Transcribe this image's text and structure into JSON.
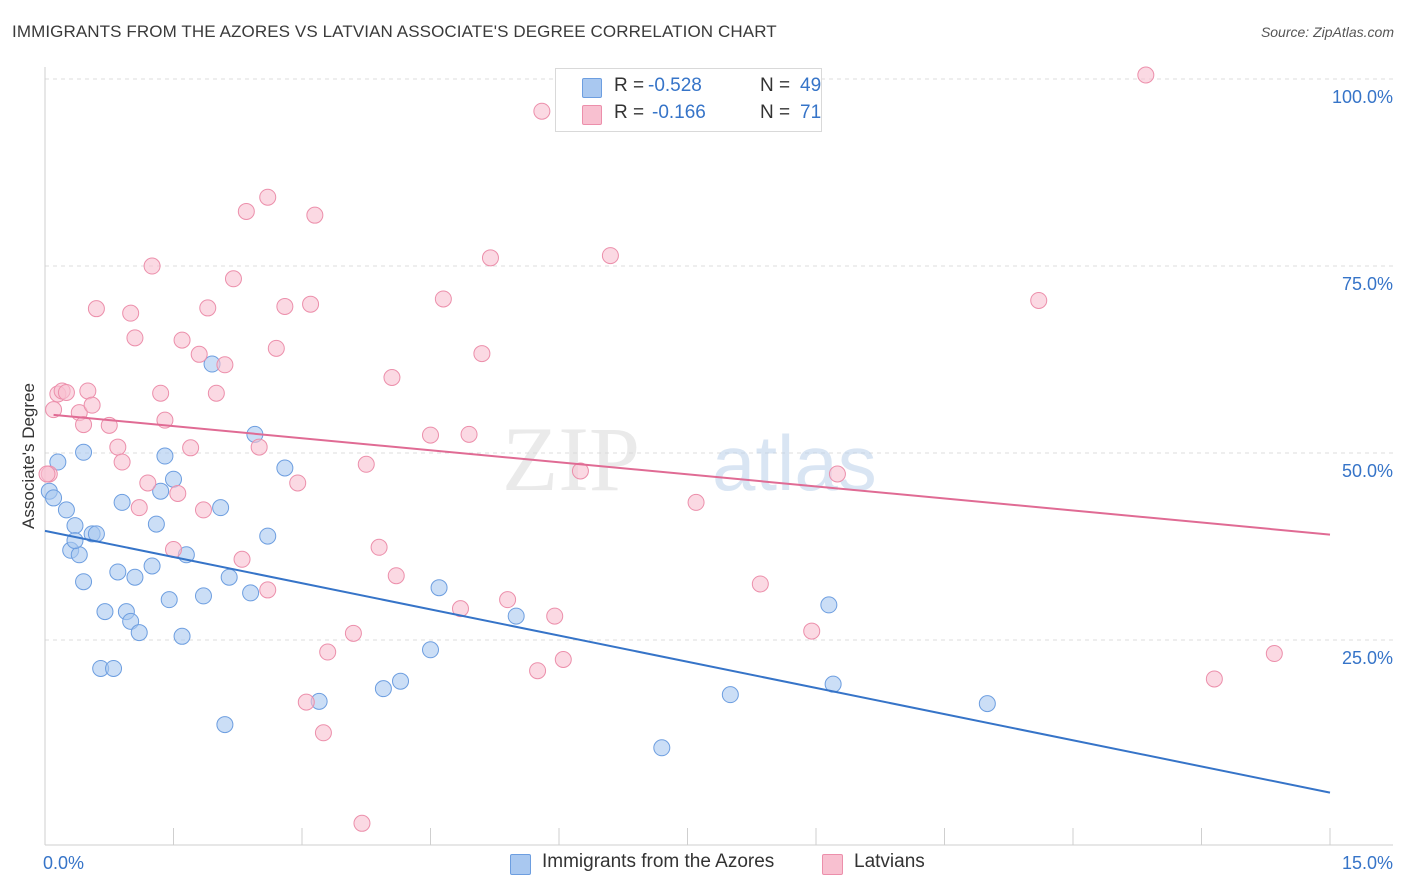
{
  "title": "IMMIGRANTS FROM THE AZORES VS LATVIAN ASSOCIATE'S DEGREE CORRELATION CHART",
  "source": "Source: ZipAtlas.com",
  "watermark": {
    "zip": "ZIP",
    "atlas": "atlas"
  },
  "legend": {
    "rows": [
      {
        "r_label": "R =",
        "r_value": "-0.528",
        "n_label": "N =",
        "n_value": "49",
        "color": "#a9c8f0",
        "border": "#6d9ee0"
      },
      {
        "r_label": "R =",
        "r_value": "-0.166",
        "n_label": "N =",
        "n_value": "71",
        "color": "#f8c0d0",
        "border": "#ec8fab"
      }
    ]
  },
  "bottom_legend": {
    "items": [
      {
        "label": "Immigrants from the Azores",
        "color": "#a9c8f0",
        "border": "#6d9ee0"
      },
      {
        "label": "Latvians",
        "color": "#f8c0d0",
        "border": "#ec8fab"
      }
    ]
  },
  "chart_data": {
    "type": "scatter",
    "title": "IMMIGRANTS FROM THE AZORES VS LATVIAN ASSOCIATE'S DEGREE CORRELATION CHART",
    "xlabel": "",
    "ylabel": "Associate's Degree",
    "xlim": [
      0,
      15
    ],
    "ylim": [
      0,
      100
    ],
    "x_tick_labels": [
      "0.0%",
      "15.0%"
    ],
    "y_ticks": [
      25,
      50,
      75,
      100
    ],
    "y_tick_labels": [
      "25.0%",
      "50.0%",
      "75.0%",
      "100.0%"
    ],
    "grid": "horizontal dashed",
    "legend_position": "top-center",
    "series": [
      {
        "name": "Immigrants from the Azores",
        "color": "#a9c8f0",
        "edge": "#6d9ee0",
        "line_color": "#3674c8",
        "trend": {
          "x": [
            0,
            15
          ],
          "y": [
            42,
            7
          ]
        },
        "points": [
          [
            0.05,
            47.3
          ],
          [
            0.1,
            46.4
          ],
          [
            0.15,
            51.2
          ],
          [
            0.25,
            44.8
          ],
          [
            0.3,
            39.4
          ],
          [
            0.35,
            42.7
          ],
          [
            0.4,
            38.8
          ],
          [
            0.45,
            35.2
          ],
          [
            0.45,
            52.5
          ],
          [
            0.55,
            41.6
          ],
          [
            0.6,
            41.6
          ],
          [
            0.65,
            23.6
          ],
          [
            0.7,
            31.2
          ],
          [
            0.8,
            23.6
          ],
          [
            0.85,
            36.5
          ],
          [
            0.9,
            45.8
          ],
          [
            0.95,
            31.2
          ],
          [
            1.0,
            29.9
          ],
          [
            1.05,
            35.8
          ],
          [
            1.1,
            28.4
          ],
          [
            1.25,
            37.3
          ],
          [
            1.3,
            42.9
          ],
          [
            1.35,
            47.3
          ],
          [
            1.4,
            52.0
          ],
          [
            1.45,
            32.8
          ],
          [
            1.5,
            48.9
          ],
          [
            1.6,
            27.9
          ],
          [
            1.65,
            38.8
          ],
          [
            1.85,
            33.3
          ],
          [
            1.95,
            64.3
          ],
          [
            2.05,
            45.1
          ],
          [
            2.1,
            16.1
          ],
          [
            2.15,
            35.8
          ],
          [
            2.4,
            33.7
          ],
          [
            2.45,
            54.9
          ],
          [
            2.6,
            41.3
          ],
          [
            2.8,
            50.4
          ],
          [
            3.2,
            19.2
          ],
          [
            3.95,
            20.9
          ],
          [
            4.15,
            21.9
          ],
          [
            4.5,
            26.1
          ],
          [
            4.6,
            34.4
          ],
          [
            5.5,
            30.6
          ],
          [
            7.2,
            13.0
          ],
          [
            8.0,
            20.1
          ],
          [
            9.15,
            32.1
          ],
          [
            9.2,
            21.5
          ],
          [
            11.0,
            18.9
          ],
          [
            0.35,
            40.7
          ]
        ]
      },
      {
        "name": "Latvians",
        "color": "#f8c0d0",
        "edge": "#ec8fab",
        "line_color": "#e06b94",
        "trend": {
          "x": [
            0.1,
            15
          ],
          "y": [
            57.5,
            41.5
          ]
        },
        "points": [
          [
            0.05,
            49.6
          ],
          [
            0.1,
            58.2
          ],
          [
            0.15,
            60.3
          ],
          [
            0.2,
            60.7
          ],
          [
            0.25,
            60.5
          ],
          [
            0.4,
            57.8
          ],
          [
            0.45,
            56.2
          ],
          [
            0.5,
            60.7
          ],
          [
            0.55,
            58.8
          ],
          [
            0.6,
            71.7
          ],
          [
            0.75,
            56.1
          ],
          [
            0.85,
            53.2
          ],
          [
            0.9,
            51.2
          ],
          [
            1.0,
            71.1
          ],
          [
            1.05,
            67.8
          ],
          [
            1.1,
            45.1
          ],
          [
            1.2,
            48.4
          ],
          [
            1.25,
            77.4
          ],
          [
            1.35,
            60.4
          ],
          [
            1.4,
            56.8
          ],
          [
            1.5,
            39.5
          ],
          [
            1.55,
            47.0
          ],
          [
            1.6,
            67.5
          ],
          [
            1.7,
            53.1
          ],
          [
            1.8,
            65.6
          ],
          [
            1.85,
            44.8
          ],
          [
            1.9,
            71.8
          ],
          [
            2.0,
            60.4
          ],
          [
            2.1,
            64.2
          ],
          [
            2.2,
            75.7
          ],
          [
            2.3,
            38.2
          ],
          [
            2.35,
            84.7
          ],
          [
            2.5,
            53.2
          ],
          [
            2.6,
            34.1
          ],
          [
            2.6,
            86.6
          ],
          [
            2.7,
            66.4
          ],
          [
            2.8,
            72.0
          ],
          [
            2.95,
            48.4
          ],
          [
            3.05,
            19.1
          ],
          [
            3.1,
            72.3
          ],
          [
            3.15,
            84.2
          ],
          [
            3.25,
            15.0
          ],
          [
            3.3,
            25.8
          ],
          [
            3.6,
            28.3
          ],
          [
            3.7,
            2.9
          ],
          [
            3.75,
            50.9
          ],
          [
            3.9,
            39.8
          ],
          [
            4.05,
            62.5
          ],
          [
            4.1,
            36.0
          ],
          [
            4.5,
            54.8
          ],
          [
            4.65,
            73.0
          ],
          [
            4.85,
            31.6
          ],
          [
            4.95,
            54.9
          ],
          [
            5.1,
            65.7
          ],
          [
            5.2,
            78.5
          ],
          [
            5.4,
            32.8
          ],
          [
            5.75,
            23.3
          ],
          [
            5.8,
            98.1
          ],
          [
            5.95,
            30.6
          ],
          [
            6.05,
            24.8
          ],
          [
            6.25,
            50.0
          ],
          [
            6.6,
            78.8
          ],
          [
            7.6,
            45.8
          ],
          [
            8.35,
            34.9
          ],
          [
            8.95,
            28.6
          ],
          [
            9.25,
            49.6
          ],
          [
            11.6,
            72.8
          ],
          [
            12.85,
            103.3
          ],
          [
            13.65,
            22.2
          ],
          [
            14.35,
            25.6
          ],
          [
            0.0,
            49.6
          ]
        ]
      }
    ]
  }
}
